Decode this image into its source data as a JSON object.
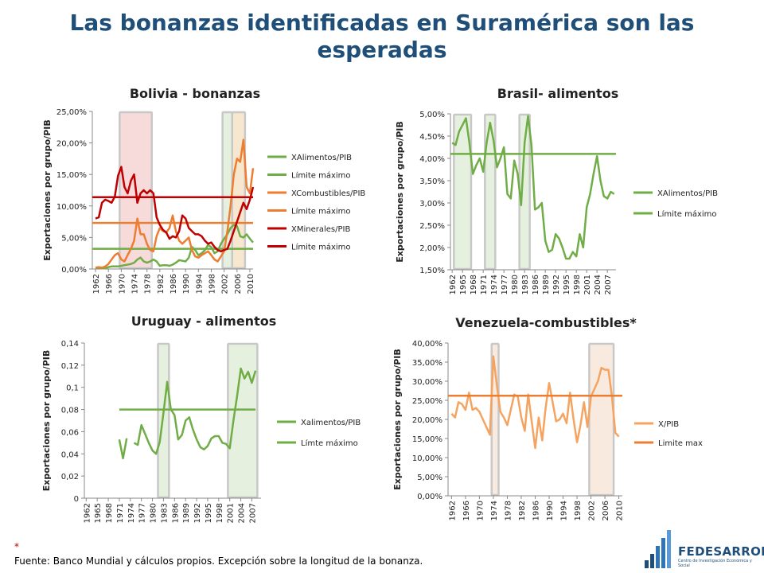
{
  "title": "Las bonanzas identificadas en Suramérica son las esperadas",
  "footnote_star": "*",
  "source": "Fuente: Banco Mundial y cálculos propios. Excepción sobre la longitud de la bonanza.",
  "logo": {
    "name": "FEDESARROLLO",
    "tagline": "Centro de Investigación Económica y Social"
  },
  "chart_data": [
    {
      "type": "line",
      "title": "Bolivia - bonanzas",
      "ylabel": "Exportaciones por grupo/PIB",
      "xlim": [
        1961,
        2011
      ],
      "ylim": [
        0,
        0.25
      ],
      "ytick_values": [
        0,
        0.05,
        0.1,
        0.15,
        0.2,
        0.25
      ],
      "yticks": [
        "0,00%",
        "5,00%",
        "10,00%",
        "15,00%",
        "20,00%",
        "25,00%"
      ],
      "xticks": [
        "1962",
        "1966",
        "1970",
        "1974",
        "1978",
        "1982",
        "1986",
        "1990",
        "1994",
        "1998",
        "2002",
        "2006",
        "2010"
      ],
      "xtick_values": [
        1962,
        1966,
        1970,
        1974,
        1978,
        1982,
        1986,
        1990,
        1994,
        1998,
        2002,
        2006,
        2010
      ],
      "bands": [
        {
          "from": 1969.5,
          "to": 1979.5,
          "color": "#f6d3d3"
        },
        {
          "from": 2001.5,
          "to": 2004.5,
          "color": "#e0efd8"
        },
        {
          "from": 2004.5,
          "to": 2008.5,
          "color": "#f6e3c6"
        }
      ],
      "series": [
        {
          "name": "XAlimentos/PIB",
          "color": "#70ad47",
          "x": [
            1962,
            1963,
            1964,
            1965,
            1966,
            1967,
            1968,
            1969,
            1970,
            1971,
            1972,
            1973,
            1974,
            1975,
            1976,
            1977,
            1978,
            1979,
            1980,
            1981,
            1982,
            1983,
            1984,
            1985,
            1986,
            1987,
            1988,
            1989,
            1990,
            1991,
            1992,
            1993,
            1994,
            1995,
            1996,
            1997,
            1998,
            1999,
            2000,
            2001,
            2002,
            2003,
            2004,
            2005,
            2006,
            2007,
            2008,
            2009,
            2010,
            2011
          ],
          "y": [
            0.002,
            0.002,
            0.001,
            0.001,
            0.003,
            0.004,
            0.004,
            0.004,
            0.005,
            0.006,
            0.007,
            0.008,
            0.01,
            0.015,
            0.018,
            0.012,
            0.01,
            0.012,
            0.015,
            0.012,
            0.005,
            0.006,
            0.006,
            0.005,
            0.007,
            0.01,
            0.014,
            0.013,
            0.012,
            0.018,
            0.035,
            0.03,
            0.022,
            0.025,
            0.03,
            0.038,
            0.035,
            0.025,
            0.028,
            0.04,
            0.048,
            0.055,
            0.065,
            0.07,
            0.068,
            0.052,
            0.05,
            0.055,
            0.048,
            0.042
          ]
        },
        {
          "name": "Límite máximo",
          "color": "#70ad47",
          "constant": 0.032
        },
        {
          "name": "XCombustibles/PIB",
          "color": "#ed7d31",
          "x": [
            1962,
            1963,
            1964,
            1965,
            1966,
            1967,
            1968,
            1969,
            1970,
            1971,
            1972,
            1973,
            1974,
            1975,
            1976,
            1977,
            1978,
            1979,
            1980,
            1981,
            1982,
            1983,
            1984,
            1985,
            1986,
            1987,
            1988,
            1989,
            1990,
            1991,
            1992,
            1993,
            1994,
            1995,
            1996,
            1997,
            1998,
            1999,
            2000,
            2001,
            2002,
            2003,
            2004,
            2005,
            2006,
            2007,
            2008,
            2009,
            2010,
            2011
          ],
          "y": [
            0.002,
            0.003,
            0.002,
            0.004,
            0.008,
            0.015,
            0.022,
            0.025,
            0.015,
            0.012,
            0.022,
            0.032,
            0.045,
            0.08,
            0.055,
            0.055,
            0.04,
            0.03,
            0.028,
            0.052,
            0.065,
            0.06,
            0.058,
            0.065,
            0.085,
            0.06,
            0.045,
            0.04,
            0.045,
            0.05,
            0.03,
            0.02,
            0.018,
            0.022,
            0.025,
            0.028,
            0.022,
            0.015,
            0.012,
            0.02,
            0.028,
            0.06,
            0.1,
            0.15,
            0.175,
            0.17,
            0.205,
            0.13,
            0.12,
            0.16
          ]
        },
        {
          "name": "Límite máximo",
          "color": "#ed7d31",
          "constant": 0.073
        },
        {
          "name": "XMinerales/PIB",
          "color": "#c00000",
          "x": [
            1962,
            1963,
            1964,
            1965,
            1966,
            1967,
            1968,
            1969,
            1970,
            1971,
            1972,
            1973,
            1974,
            1975,
            1976,
            1977,
            1978,
            1979,
            1980,
            1981,
            1982,
            1983,
            1984,
            1985,
            1986,
            1987,
            1988,
            1989,
            1990,
            1991,
            1992,
            1993,
            1994,
            1995,
            1996,
            1997,
            1998,
            1999,
            2000,
            2001,
            2002,
            2003,
            2004,
            2005,
            2006,
            2007,
            2008,
            2009,
            2010,
            2011
          ],
          "y": [
            0.08,
            0.082,
            0.105,
            0.11,
            0.108,
            0.105,
            0.115,
            0.148,
            0.162,
            0.13,
            0.12,
            0.14,
            0.15,
            0.105,
            0.12,
            0.125,
            0.12,
            0.125,
            0.12,
            0.082,
            0.07,
            0.062,
            0.058,
            0.048,
            0.052,
            0.05,
            0.06,
            0.085,
            0.08,
            0.065,
            0.06,
            0.055,
            0.055,
            0.052,
            0.045,
            0.04,
            0.042,
            0.035,
            0.03,
            0.028,
            0.03,
            0.032,
            0.045,
            0.06,
            0.075,
            0.09,
            0.105,
            0.095,
            0.11,
            0.13
          ]
        },
        {
          "name": "Límite máximo",
          "color": "#c00000",
          "constant": 0.114
        }
      ]
    },
    {
      "type": "line",
      "title": "Brasil- alimentos",
      "ylabel": "Exportaciones por grupo/PIB",
      "xlim": [
        1961.5,
        2009.5
      ],
      "ylim": [
        0.015,
        0.05
      ],
      "ytick_values": [
        0.015,
        0.02,
        0.025,
        0.03,
        0.035,
        0.04,
        0.045,
        0.05
      ],
      "yticks": [
        "1,50%",
        "2,00%",
        "2,50%",
        "3,00%",
        "3,50%",
        "4,00%",
        "4,50%",
        "5,00%"
      ],
      "xticks": [
        "1962",
        "1965",
        "1968",
        "1971",
        "1974",
        "1977",
        "1980",
        "1983",
        "1986",
        "1989",
        "1992",
        "1995",
        "1998",
        "2001",
        "2004",
        "2007"
      ],
      "xtick_values": [
        1962,
        1965,
        1968,
        1971,
        1974,
        1977,
        1980,
        1983,
        1986,
        1989,
        1992,
        1995,
        1998,
        2001,
        2004,
        2007
      ],
      "bands": [
        {
          "from": 1962.5,
          "to": 1967.5,
          "color": "#e0efd8"
        },
        {
          "from": 1971.5,
          "to": 1974.5,
          "color": "#e0efd8"
        },
        {
          "from": 1981.5,
          "to": 1984.5,
          "color": "#e0efd8"
        }
      ],
      "series": [
        {
          "name": "XAlimentos/PIB",
          "color": "#70ad47",
          "x": [
            1962,
            1963,
            1964,
            1965,
            1966,
            1967,
            1968,
            1969,
            1970,
            1971,
            1972,
            1973,
            1974,
            1975,
            1976,
            1977,
            1978,
            1979,
            1980,
            1981,
            1982,
            1983,
            1984,
            1985,
            1986,
            1987,
            1988,
            1989,
            1990,
            1991,
            1992,
            1993,
            1994,
            1995,
            1996,
            1997,
            1998,
            1999,
            2000,
            2001,
            2002,
            2003,
            2004,
            2005,
            2006,
            2007,
            2008,
            2009
          ],
          "y": [
            0.0435,
            0.043,
            0.046,
            0.0475,
            0.049,
            0.0435,
            0.0365,
            0.0385,
            0.04,
            0.037,
            0.0435,
            0.048,
            0.044,
            0.038,
            0.04,
            0.0425,
            0.032,
            0.031,
            0.0395,
            0.0365,
            0.0295,
            0.0435,
            0.0495,
            0.043,
            0.0285,
            0.029,
            0.03,
            0.0215,
            0.019,
            0.0195,
            0.023,
            0.022,
            0.02,
            0.0175,
            0.0175,
            0.019,
            0.018,
            0.023,
            0.02,
            0.029,
            0.032,
            0.0365,
            0.0405,
            0.035,
            0.0315,
            0.031,
            0.0325,
            0.032
          ]
        },
        {
          "name": "Límite máximo",
          "color": "#70ad47",
          "constant": 0.041
        }
      ]
    },
    {
      "type": "line",
      "title": "Uruguay - alimentos",
      "ylabel": "Exportaciones por grupo/PIB",
      "xlim": [
        1961.5,
        2009.5
      ],
      "ylim": [
        0,
        0.14
      ],
      "ytick_values": [
        0,
        0.02,
        0.04,
        0.06,
        0.08,
        0.1,
        0.12,
        0.14
      ],
      "yticks": [
        "0",
        "0,02",
        "0,04",
        "0,06",
        "0,08",
        "0,1",
        "0,12",
        "0,14"
      ],
      "xticks": [
        "1962",
        "1965",
        "1968",
        "1971",
        "1974",
        "1977",
        "1980",
        "1983",
        "1986",
        "1989",
        "1992",
        "1995",
        "1998",
        "2001",
        "2004",
        "2007"
      ],
      "xtick_values": [
        1962,
        1965,
        1968,
        1971,
        1974,
        1977,
        1980,
        1983,
        1986,
        1989,
        1992,
        1995,
        1998,
        2001,
        2004,
        2007
      ],
      "bands": [
        {
          "from": 1981.5,
          "to": 1984.5,
          "color": "#e0efd8"
        },
        {
          "from": 2000.5,
          "to": 2008.5,
          "color": "#e0efd8"
        }
      ],
      "series": [
        {
          "name": "Xalimentos/PIB",
          "color": "#70ad47",
          "x": [
            1971,
            1972,
            1973,
            null,
            1975,
            1976,
            1977,
            1978,
            1979,
            1980,
            1981,
            1982,
            1983,
            1984,
            1985,
            1986,
            1987,
            1988,
            1989,
            1990,
            1991,
            1992,
            1993,
            1994,
            1995,
            1996,
            1997,
            1998,
            1999,
            2000,
            2001,
            2002,
            2003,
            2004,
            2005,
            2006,
            2007,
            2008
          ],
          "y": [
            0.053,
            0.036,
            0.054,
            null,
            0.05,
            0.048,
            0.066,
            0.058,
            0.05,
            0.043,
            0.04,
            0.051,
            0.077,
            0.105,
            0.08,
            0.075,
            0.053,
            0.057,
            0.07,
            0.073,
            0.062,
            0.053,
            0.046,
            0.044,
            0.047,
            0.054,
            0.056,
            0.056,
            0.05,
            0.049,
            0.045,
            0.07,
            0.092,
            0.117,
            0.108,
            0.114,
            0.104,
            0.115
          ]
        },
        {
          "name": "Límte máximo",
          "color": "#70ad47",
          "constant": 0.08,
          "from": 1971,
          "to": 2008
        }
      ]
    },
    {
      "type": "line",
      "title": "Venezuela-combustibles*",
      "ylabel": "Exportaciones por grupo/PIB",
      "xlim": [
        1961,
        2011
      ],
      "ylim": [
        0,
        0.4
      ],
      "ytick_values": [
        0,
        0.05,
        0.1,
        0.15,
        0.2,
        0.25,
        0.3,
        0.35,
        0.4
      ],
      "yticks": [
        "0,00%",
        "5,00%",
        "10,00%",
        "15,00%",
        "20,00%",
        "25,00%",
        "30,00%",
        "35,00%",
        "40,00%"
      ],
      "xticks": [
        "1962",
        "1966",
        "1970",
        "1974",
        "1978",
        "1982",
        "1986",
        "1990",
        "1994",
        "1998",
        "2002",
        "2006",
        "2010"
      ],
      "xtick_values": [
        1962,
        1966,
        1970,
        1974,
        1978,
        1982,
        1986,
        1990,
        1994,
        1998,
        2002,
        2006,
        2010
      ],
      "bands": [
        {
          "from": 1973.5,
          "to": 1975.5,
          "color": "#f8e6da"
        },
        {
          "from": 2001.5,
          "to": 2008.5,
          "color": "#f8e6da"
        }
      ],
      "series": [
        {
          "name": "X/PIB",
          "color": "#f4a460",
          "x": [
            1962,
            1963,
            1964,
            1965,
            1966,
            1967,
            1968,
            1969,
            1970,
            1971,
            1972,
            1973,
            1974,
            1975,
            1976,
            1977,
            1978,
            1979,
            1980,
            1981,
            1982,
            1983,
            1984,
            1985,
            1986,
            1987,
            1988,
            1989,
            1990,
            1991,
            1992,
            1993,
            1994,
            1995,
            1996,
            1997,
            1998,
            1999,
            2000,
            2001,
            2002,
            2003,
            2004,
            2005,
            2006,
            2007,
            2008,
            2009,
            2010
          ],
          "y": [
            0.215,
            0.205,
            0.245,
            0.24,
            0.225,
            0.27,
            0.225,
            0.23,
            0.22,
            0.2,
            0.18,
            0.16,
            0.365,
            0.29,
            0.22,
            0.205,
            0.185,
            0.225,
            0.265,
            0.26,
            0.205,
            0.17,
            0.265,
            0.195,
            0.125,
            0.205,
            0.145,
            0.23,
            0.295,
            0.245,
            0.195,
            0.2,
            0.215,
            0.19,
            0.27,
            0.2,
            0.14,
            0.185,
            0.245,
            0.18,
            0.26,
            0.28,
            0.3,
            0.335,
            0.33,
            0.33,
            0.26,
            0.165,
            0.155
          ]
        },
        {
          "name": "Limite max",
          "color": "#ed7d31",
          "constant": 0.262
        }
      ]
    }
  ]
}
